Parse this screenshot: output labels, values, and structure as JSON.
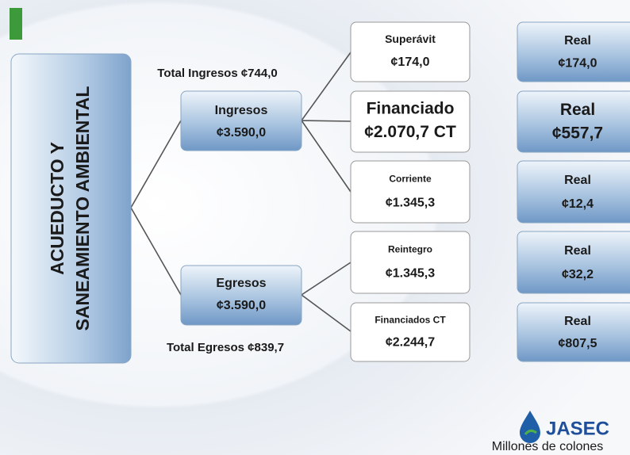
{
  "root": {
    "lines": [
      "ACUEDUCTO Y",
      "SANEAMIENTO AMBIENTAL"
    ]
  },
  "totals": {
    "ingresos": "Total Ingresos ¢744,0",
    "egresos": "Total Egresos ¢839,7"
  },
  "nodes": [
    {
      "label": "Ingresos",
      "amount": "¢3.590,0"
    },
    {
      "label": "Egresos",
      "amount": "¢3.590,0"
    }
  ],
  "leaves": [
    {
      "label": "Superávit",
      "amount": "¢174,0"
    },
    {
      "label": "Financiado",
      "amount": "¢2.070,7 CT"
    },
    {
      "label": "Corriente",
      "amount": "¢1.345,3"
    },
    {
      "label": "Reintegro",
      "amount": "¢1.345,3"
    },
    {
      "label": "Financiados CT",
      "amount": "¢2.244,7"
    }
  ],
  "real": [
    {
      "label": "Real",
      "amount": "¢174,0"
    },
    {
      "label": "Real",
      "amount": "¢557,7"
    },
    {
      "label": "Real",
      "amount": "¢12,4"
    },
    {
      "label": "Real",
      "amount": "¢32,2"
    },
    {
      "label": "Real",
      "amount": "¢807,5"
    }
  ],
  "logo": {
    "name": "JASEC",
    "caption": "Millones de colones"
  }
}
